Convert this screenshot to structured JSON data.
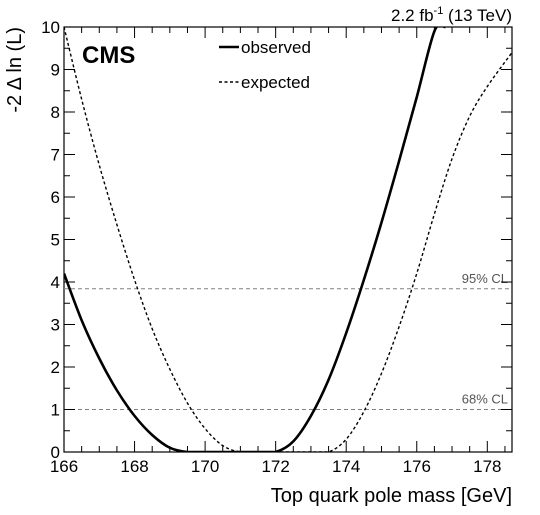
{
  "chart_data": {
    "type": "line",
    "title": "",
    "experiment_label": "CMS",
    "lumi_label": {
      "value": "2.2 fb",
      "superscript": "-1",
      "energy": " (13 TeV)"
    },
    "xlabel": "Top quark pole mass [GeV]",
    "ylabel": "-2 Δ ln (L)",
    "xlim": [
      166,
      178.7
    ],
    "ylim": [
      0,
      10
    ],
    "x_ticks": [
      "166",
      "168",
      "170",
      "172",
      "174",
      "176",
      "178"
    ],
    "y_ticks": [
      "0",
      "1",
      "2",
      "3",
      "4",
      "5",
      "6",
      "7",
      "8",
      "9",
      "10"
    ],
    "legend_position": "top-center",
    "grid": false,
    "series": [
      {
        "name": "observed",
        "style": "solid",
        "color": "#000000",
        "points": [
          [
            166.0,
            4.2
          ],
          [
            166.5,
            3.1
          ],
          [
            167.0,
            2.2
          ],
          [
            167.5,
            1.45
          ],
          [
            168.0,
            0.85
          ],
          [
            168.5,
            0.4
          ],
          [
            169.0,
            0.1
          ],
          [
            169.5,
            0.0
          ],
          [
            170.0,
            0.0
          ],
          [
            170.5,
            0.0
          ],
          [
            171.0,
            0.0
          ],
          [
            171.5,
            0.0
          ],
          [
            172.0,
            0.0
          ],
          [
            172.5,
            0.25
          ],
          [
            173.0,
            0.85
          ],
          [
            173.5,
            1.7
          ],
          [
            174.0,
            2.8
          ],
          [
            174.5,
            4.05
          ],
          [
            175.0,
            5.4
          ],
          [
            175.5,
            6.85
          ],
          [
            176.0,
            8.35
          ],
          [
            176.5,
            9.9
          ],
          [
            176.8,
            10.0
          ]
        ]
      },
      {
        "name": "expected",
        "style": "dashed",
        "color": "#000000",
        "points": [
          [
            166.0,
            10.0
          ],
          [
            166.5,
            8.3
          ],
          [
            167.0,
            6.75
          ],
          [
            167.5,
            5.35
          ],
          [
            168.0,
            4.05
          ],
          [
            168.5,
            2.9
          ],
          [
            169.0,
            1.95
          ],
          [
            169.5,
            1.15
          ],
          [
            170.0,
            0.55
          ],
          [
            170.5,
            0.15
          ],
          [
            171.0,
            0.0
          ],
          [
            171.5,
            0.0
          ],
          [
            172.0,
            0.0
          ],
          [
            172.5,
            0.0
          ],
          [
            173.0,
            0.0
          ],
          [
            173.5,
            0.0
          ],
          [
            174.0,
            0.3
          ],
          [
            174.5,
            0.95
          ],
          [
            175.0,
            1.85
          ],
          [
            175.5,
            2.95
          ],
          [
            176.0,
            4.2
          ],
          [
            176.5,
            5.6
          ],
          [
            177.0,
            6.9
          ],
          [
            177.5,
            7.9
          ],
          [
            178.0,
            8.6
          ],
          [
            178.7,
            9.4
          ]
        ]
      }
    ],
    "reference_lines": [
      {
        "y": 3.84,
        "label": "95% CL",
        "color": "#808080"
      },
      {
        "y": 1.0,
        "label": "68% CL",
        "color": "#808080"
      }
    ]
  }
}
